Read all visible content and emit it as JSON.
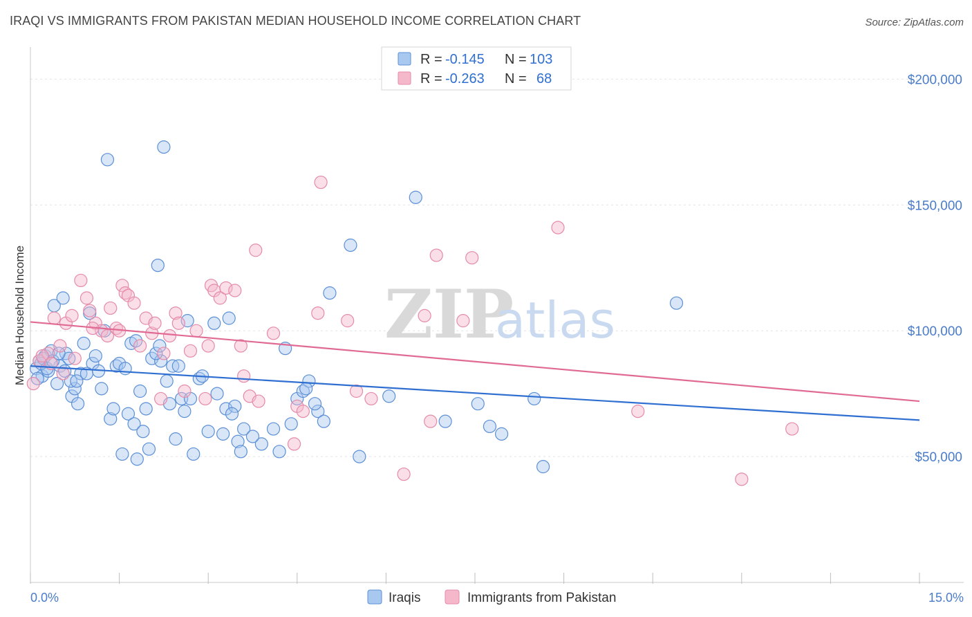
{
  "title": "IRAQI VS IMMIGRANTS FROM PAKISTAN MEDIAN HOUSEHOLD INCOME CORRELATION CHART",
  "source": "Source: ZipAtlas.com",
  "watermark": {
    "zip": "ZIP",
    "atlas": "atlas"
  },
  "colors": {
    "blue_fill": "#a9c8f0",
    "blue_stroke": "#5b8fd6",
    "blue_line": "#2f6fd1",
    "pink_fill": "#f5b8cb",
    "pink_stroke": "#e58aa8",
    "pink_line": "#e06a94",
    "grid": "#e3e3e3",
    "axis_text": "#4a7cc9"
  },
  "legend": {
    "rows": [
      {
        "r_label": "R =",
        "r_value": "-0.145",
        "n_label": "N =",
        "n_value": "103"
      },
      {
        "r_label": "R =",
        "r_value": "-0.263",
        "n_label": "N =",
        "n_value": "68"
      }
    ]
  },
  "chart_data": {
    "type": "scatter",
    "title": "IRAQI VS IMMIGRANTS FROM PAKISTAN MEDIAN HOUSEHOLD INCOME CORRELATION CHART",
    "xlabel": "",
    "ylabel": "Median Household Income",
    "xlim": [
      0,
      15
    ],
    "ylim": [
      0,
      210000
    ],
    "x_tick_labels": [
      "0.0%",
      "15.0%"
    ],
    "y_ticks": [
      50000,
      100000,
      150000,
      200000
    ],
    "y_tick_labels": [
      "$50,000",
      "$100,000",
      "$150,000",
      "$200,000"
    ],
    "grid": true,
    "legend_position": "top-center",
    "series": [
      {
        "name": "Iraqis",
        "r": -0.145,
        "n": 103,
        "trend": {
          "x": [
            0,
            15
          ],
          "y": [
            86000,
            64500
          ]
        },
        "points": [
          [
            0.1,
            85000
          ],
          [
            0.15,
            88000
          ],
          [
            0.2,
            82000
          ],
          [
            0.25,
            90000
          ],
          [
            0.3,
            84000
          ],
          [
            0.35,
            92000
          ],
          [
            0.4,
            110000
          ],
          [
            0.45,
            79000
          ],
          [
            0.5,
            86000
          ],
          [
            0.55,
            113000
          ],
          [
            0.6,
            91000
          ],
          [
            0.65,
            89000
          ],
          [
            0.7,
            74000
          ],
          [
            0.75,
            77000
          ],
          [
            0.8,
            71000
          ],
          [
            0.85,
            83000
          ],
          [
            0.9,
            95000
          ],
          [
            1.0,
            107000
          ],
          [
            1.05,
            87000
          ],
          [
            1.1,
            90000
          ],
          [
            1.2,
            77000
          ],
          [
            1.25,
            100000
          ],
          [
            1.3,
            168000
          ],
          [
            1.35,
            65000
          ],
          [
            1.4,
            69000
          ],
          [
            1.45,
            86000
          ],
          [
            1.5,
            87000
          ],
          [
            1.55,
            51000
          ],
          [
            1.65,
            67000
          ],
          [
            1.7,
            95000
          ],
          [
            1.75,
            63000
          ],
          [
            1.8,
            49000
          ],
          [
            1.85,
            76000
          ],
          [
            1.9,
            60000
          ],
          [
            1.95,
            69000
          ],
          [
            2.0,
            53000
          ],
          [
            2.05,
            89000
          ],
          [
            2.15,
            126000
          ],
          [
            2.2,
            88000
          ],
          [
            2.25,
            173000
          ],
          [
            2.3,
            80000
          ],
          [
            2.35,
            71000
          ],
          [
            2.4,
            86000
          ],
          [
            2.45,
            57000
          ],
          [
            2.55,
            73000
          ],
          [
            2.6,
            68000
          ],
          [
            2.65,
            104000
          ],
          [
            2.75,
            51000
          ],
          [
            2.85,
            81000
          ],
          [
            3.0,
            60000
          ],
          [
            3.1,
            103000
          ],
          [
            3.25,
            59000
          ],
          [
            3.3,
            69000
          ],
          [
            3.35,
            105000
          ],
          [
            3.45,
            70000
          ],
          [
            3.5,
            56000
          ],
          [
            3.6,
            61000
          ],
          [
            3.9,
            55000
          ],
          [
            4.1,
            61000
          ],
          [
            4.3,
            93000
          ],
          [
            4.5,
            73000
          ],
          [
            4.6,
            76000
          ],
          [
            4.7,
            80000
          ],
          [
            4.85,
            68000
          ],
          [
            4.95,
            64000
          ],
          [
            5.05,
            115000
          ],
          [
            5.4,
            134000
          ],
          [
            5.55,
            50000
          ],
          [
            6.05,
            74000
          ],
          [
            6.5,
            153000
          ],
          [
            7.0,
            64000
          ],
          [
            7.55,
            71000
          ],
          [
            7.75,
            62000
          ],
          [
            7.95,
            59000
          ],
          [
            8.5,
            73000
          ],
          [
            8.65,
            46000
          ],
          [
            10.9,
            111000
          ],
          [
            0.12,
            81000
          ],
          [
            0.18,
            87000
          ],
          [
            0.22,
            89000
          ],
          [
            0.28,
            85000
          ],
          [
            0.38,
            88000
          ],
          [
            0.48,
            91000
          ],
          [
            0.58,
            84000
          ],
          [
            0.68,
            80000
          ],
          [
            0.78,
            80000
          ],
          [
            0.95,
            83000
          ],
          [
            1.15,
            84000
          ],
          [
            1.6,
            85000
          ],
          [
            1.78,
            96000
          ],
          [
            2.12,
            91000
          ],
          [
            2.18,
            94000
          ],
          [
            2.5,
            86000
          ],
          [
            2.7,
            73000
          ],
          [
            2.9,
            82000
          ],
          [
            3.15,
            75000
          ],
          [
            3.4,
            67000
          ],
          [
            3.55,
            52000
          ],
          [
            3.75,
            58000
          ],
          [
            4.2,
            52000
          ],
          [
            4.4,
            63000
          ],
          [
            4.65,
            77000
          ],
          [
            4.8,
            71000
          ]
        ]
      },
      {
        "name": "Immigrants from Pakistan",
        "r": -0.263,
        "n": 68,
        "trend": {
          "x": [
            0,
            15
          ],
          "y": [
            103500,
            72000
          ]
        },
        "points": [
          [
            0.05,
            79000
          ],
          [
            0.15,
            88000
          ],
          [
            0.3,
            91000
          ],
          [
            0.4,
            105000
          ],
          [
            0.5,
            94000
          ],
          [
            0.6,
            103000
          ],
          [
            0.7,
            106000
          ],
          [
            0.75,
            89000
          ],
          [
            0.85,
            120000
          ],
          [
            0.95,
            113000
          ],
          [
            1.0,
            108000
          ],
          [
            1.1,
            103000
          ],
          [
            1.2,
            100000
          ],
          [
            1.3,
            98000
          ],
          [
            1.35,
            109000
          ],
          [
            1.45,
            101000
          ],
          [
            1.55,
            118000
          ],
          [
            1.6,
            115000
          ],
          [
            1.65,
            114000
          ],
          [
            1.75,
            111000
          ],
          [
            1.85,
            94000
          ],
          [
            1.95,
            105000
          ],
          [
            2.05,
            99000
          ],
          [
            2.1,
            103000
          ],
          [
            2.25,
            91000
          ],
          [
            2.35,
            98000
          ],
          [
            2.45,
            107000
          ],
          [
            2.5,
            103000
          ],
          [
            2.6,
            76000
          ],
          [
            2.7,
            92000
          ],
          [
            2.8,
            100000
          ],
          [
            2.95,
            73000
          ],
          [
            3.05,
            118000
          ],
          [
            3.1,
            116000
          ],
          [
            3.2,
            113000
          ],
          [
            3.3,
            117000
          ],
          [
            3.45,
            116000
          ],
          [
            3.55,
            94000
          ],
          [
            3.6,
            82000
          ],
          [
            3.7,
            74000
          ],
          [
            3.8,
            132000
          ],
          [
            3.85,
            72000
          ],
          [
            4.1,
            99000
          ],
          [
            4.45,
            55000
          ],
          [
            4.5,
            70000
          ],
          [
            4.6,
            68000
          ],
          [
            4.85,
            107000
          ],
          [
            4.9,
            159000
          ],
          [
            5.35,
            104000
          ],
          [
            5.5,
            76000
          ],
          [
            5.75,
            73000
          ],
          [
            6.3,
            43000
          ],
          [
            6.65,
            106000
          ],
          [
            6.75,
            64000
          ],
          [
            6.85,
            130000
          ],
          [
            7.3,
            104000
          ],
          [
            7.45,
            129000
          ],
          [
            8.9,
            141000
          ],
          [
            10.25,
            68000
          ],
          [
            12.0,
            41000
          ],
          [
            12.85,
            61000
          ],
          [
            0.2,
            90000
          ],
          [
            0.35,
            87000
          ],
          [
            0.55,
            83000
          ],
          [
            1.05,
            101000
          ],
          [
            1.5,
            100000
          ],
          [
            2.2,
            73000
          ],
          [
            3.0,
            94000
          ]
        ]
      }
    ]
  }
}
